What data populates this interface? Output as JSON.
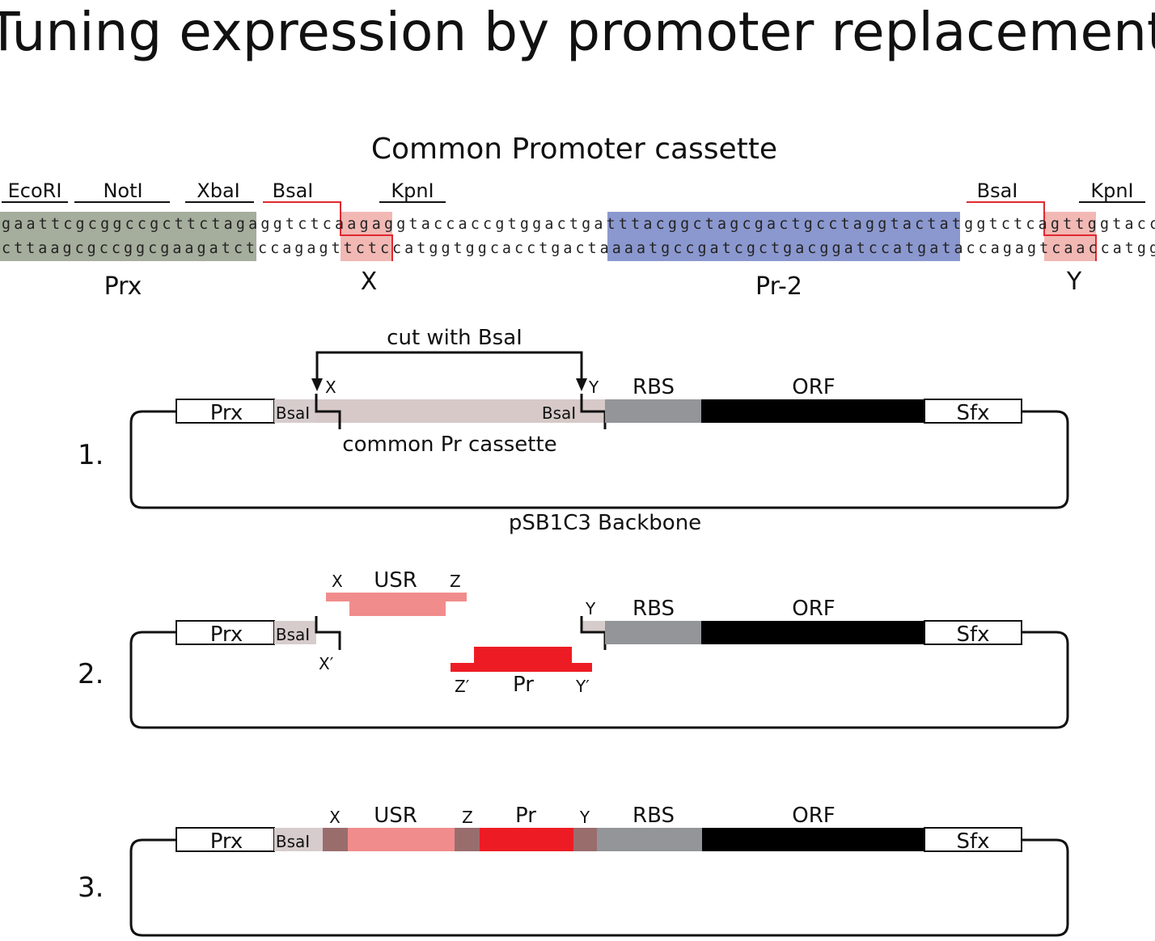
{
  "title": "Tuning expression by promoter replacement",
  "cassette": {
    "heading": "Common Promoter cassette",
    "enzymes": [
      "EcoRI",
      "NotI",
      "XbaI",
      "BsaI",
      "KpnI",
      "BsaI",
      "KpnI"
    ],
    "seq_top": "gaattcgcggccgcttctagaggtctcaagaggtaccaccgtggactgatttacggctagcgactgcctaggtactatggtctcagttggtacc",
    "seq_bottom": "cttaagcgccggcgaagatctccagagttctccatggtggcacctgactaaaatgccgatcgctgacggatccatgataccagagtcaaccatgg",
    "region_labels": {
      "prx": "Prx",
      "x": "X",
      "pr2": "Pr-2",
      "y": "Y"
    }
  },
  "step1": {
    "number": "1.",
    "cut_label": "cut with BsaI",
    "x": "X",
    "y": "Y",
    "prx": "Prx",
    "bsai_left": "BsaI",
    "bsai_right": "BsaI",
    "rbs": "RBS",
    "orf": "ORF",
    "sfx": "Sfx",
    "cassette_label": "common Pr cassette",
    "backbone": "pSB1C3 Backbone"
  },
  "step2": {
    "number": "2.",
    "prx": "Prx",
    "bsai": "BsaI",
    "x": "X",
    "usr": "USR",
    "z": "Z",
    "x_prime": "X′",
    "z_prime": "Z′",
    "pr": "Pr",
    "y_prime": "Y′",
    "y": "Y",
    "rbs": "RBS",
    "orf": "ORF",
    "sfx": "Sfx"
  },
  "step3": {
    "number": "3.",
    "prx": "Prx",
    "bsai": "BsaI",
    "x": "X",
    "usr": "USR",
    "z": "Z",
    "pr": "Pr",
    "y": "Y",
    "rbs": "RBS",
    "orf": "ORF",
    "sfx": "Sfx"
  },
  "colors": {
    "prx_highlight": "#a5ad9c",
    "overhang_highlight": "#f2b8b4",
    "pr2_highlight": "#8b98cf",
    "bsai_site": "#d7cccc",
    "cassette_body": "#d6c9c8",
    "rbs": "#939598",
    "orf": "#000000",
    "usr": "#f18c8c",
    "pr": "#ed1c24",
    "scar": "#9a6d6d",
    "cut_line": "#e0282f"
  }
}
